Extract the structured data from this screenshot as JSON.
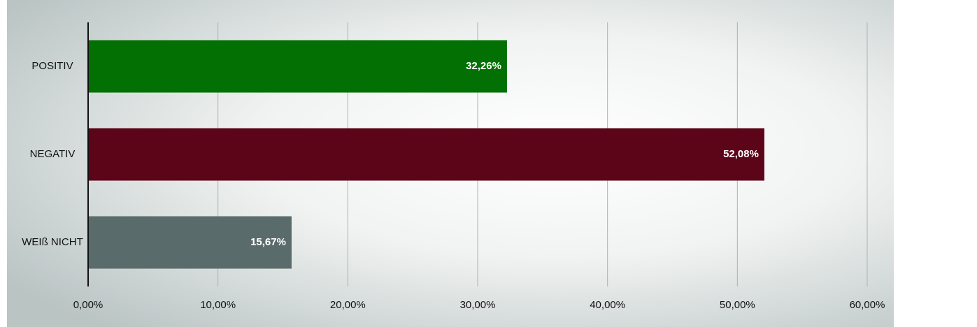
{
  "chart_data": {
    "type": "bar",
    "orientation": "horizontal",
    "categories": [
      "POSITIV",
      "NEGATIV",
      "WEIß NICHT"
    ],
    "values": [
      32.26,
      52.08,
      15.67
    ],
    "value_labels": [
      "32,26%",
      "52,08%",
      "15,67%"
    ],
    "colors": [
      "#037003",
      "#5c0519",
      "#5a6b6b"
    ],
    "xlim": [
      0,
      60
    ],
    "xticks": [
      {
        "value": 0,
        "label": "0,00%"
      },
      {
        "value": 10,
        "label": "10,00%"
      },
      {
        "value": 20,
        "label": "20,00%"
      },
      {
        "value": 30,
        "label": "30,00%"
      },
      {
        "value": 40,
        "label": "40,00%"
      },
      {
        "value": 50,
        "label": "50,00%"
      },
      {
        "value": 60,
        "label": "60,00%"
      }
    ],
    "grid": true
  }
}
